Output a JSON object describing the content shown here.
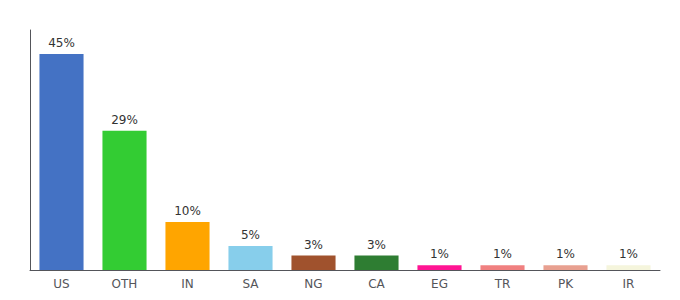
{
  "chart_data": {
    "type": "bar",
    "categories": [
      "US",
      "OTH",
      "IN",
      "SA",
      "NG",
      "CA",
      "EG",
      "TR",
      "PK",
      "IR"
    ],
    "values": [
      45,
      29,
      10,
      5,
      3,
      3,
      1,
      1,
      1,
      1
    ],
    "value_labels": [
      "45%",
      "29%",
      "10%",
      "5%",
      "3%",
      "3%",
      "1%",
      "1%",
      "1%",
      "1%"
    ],
    "colors": [
      "#4472C4",
      "#33CC33",
      "#FFA500",
      "#87CEEB",
      "#A0522D",
      "#2E7D32",
      "#FF1493",
      "#F08080",
      "#E8A090",
      "#F5F5DC"
    ],
    "ylim": [
      0,
      50
    ],
    "grid": false,
    "data_labels": true,
    "tick_labels": "x"
  }
}
